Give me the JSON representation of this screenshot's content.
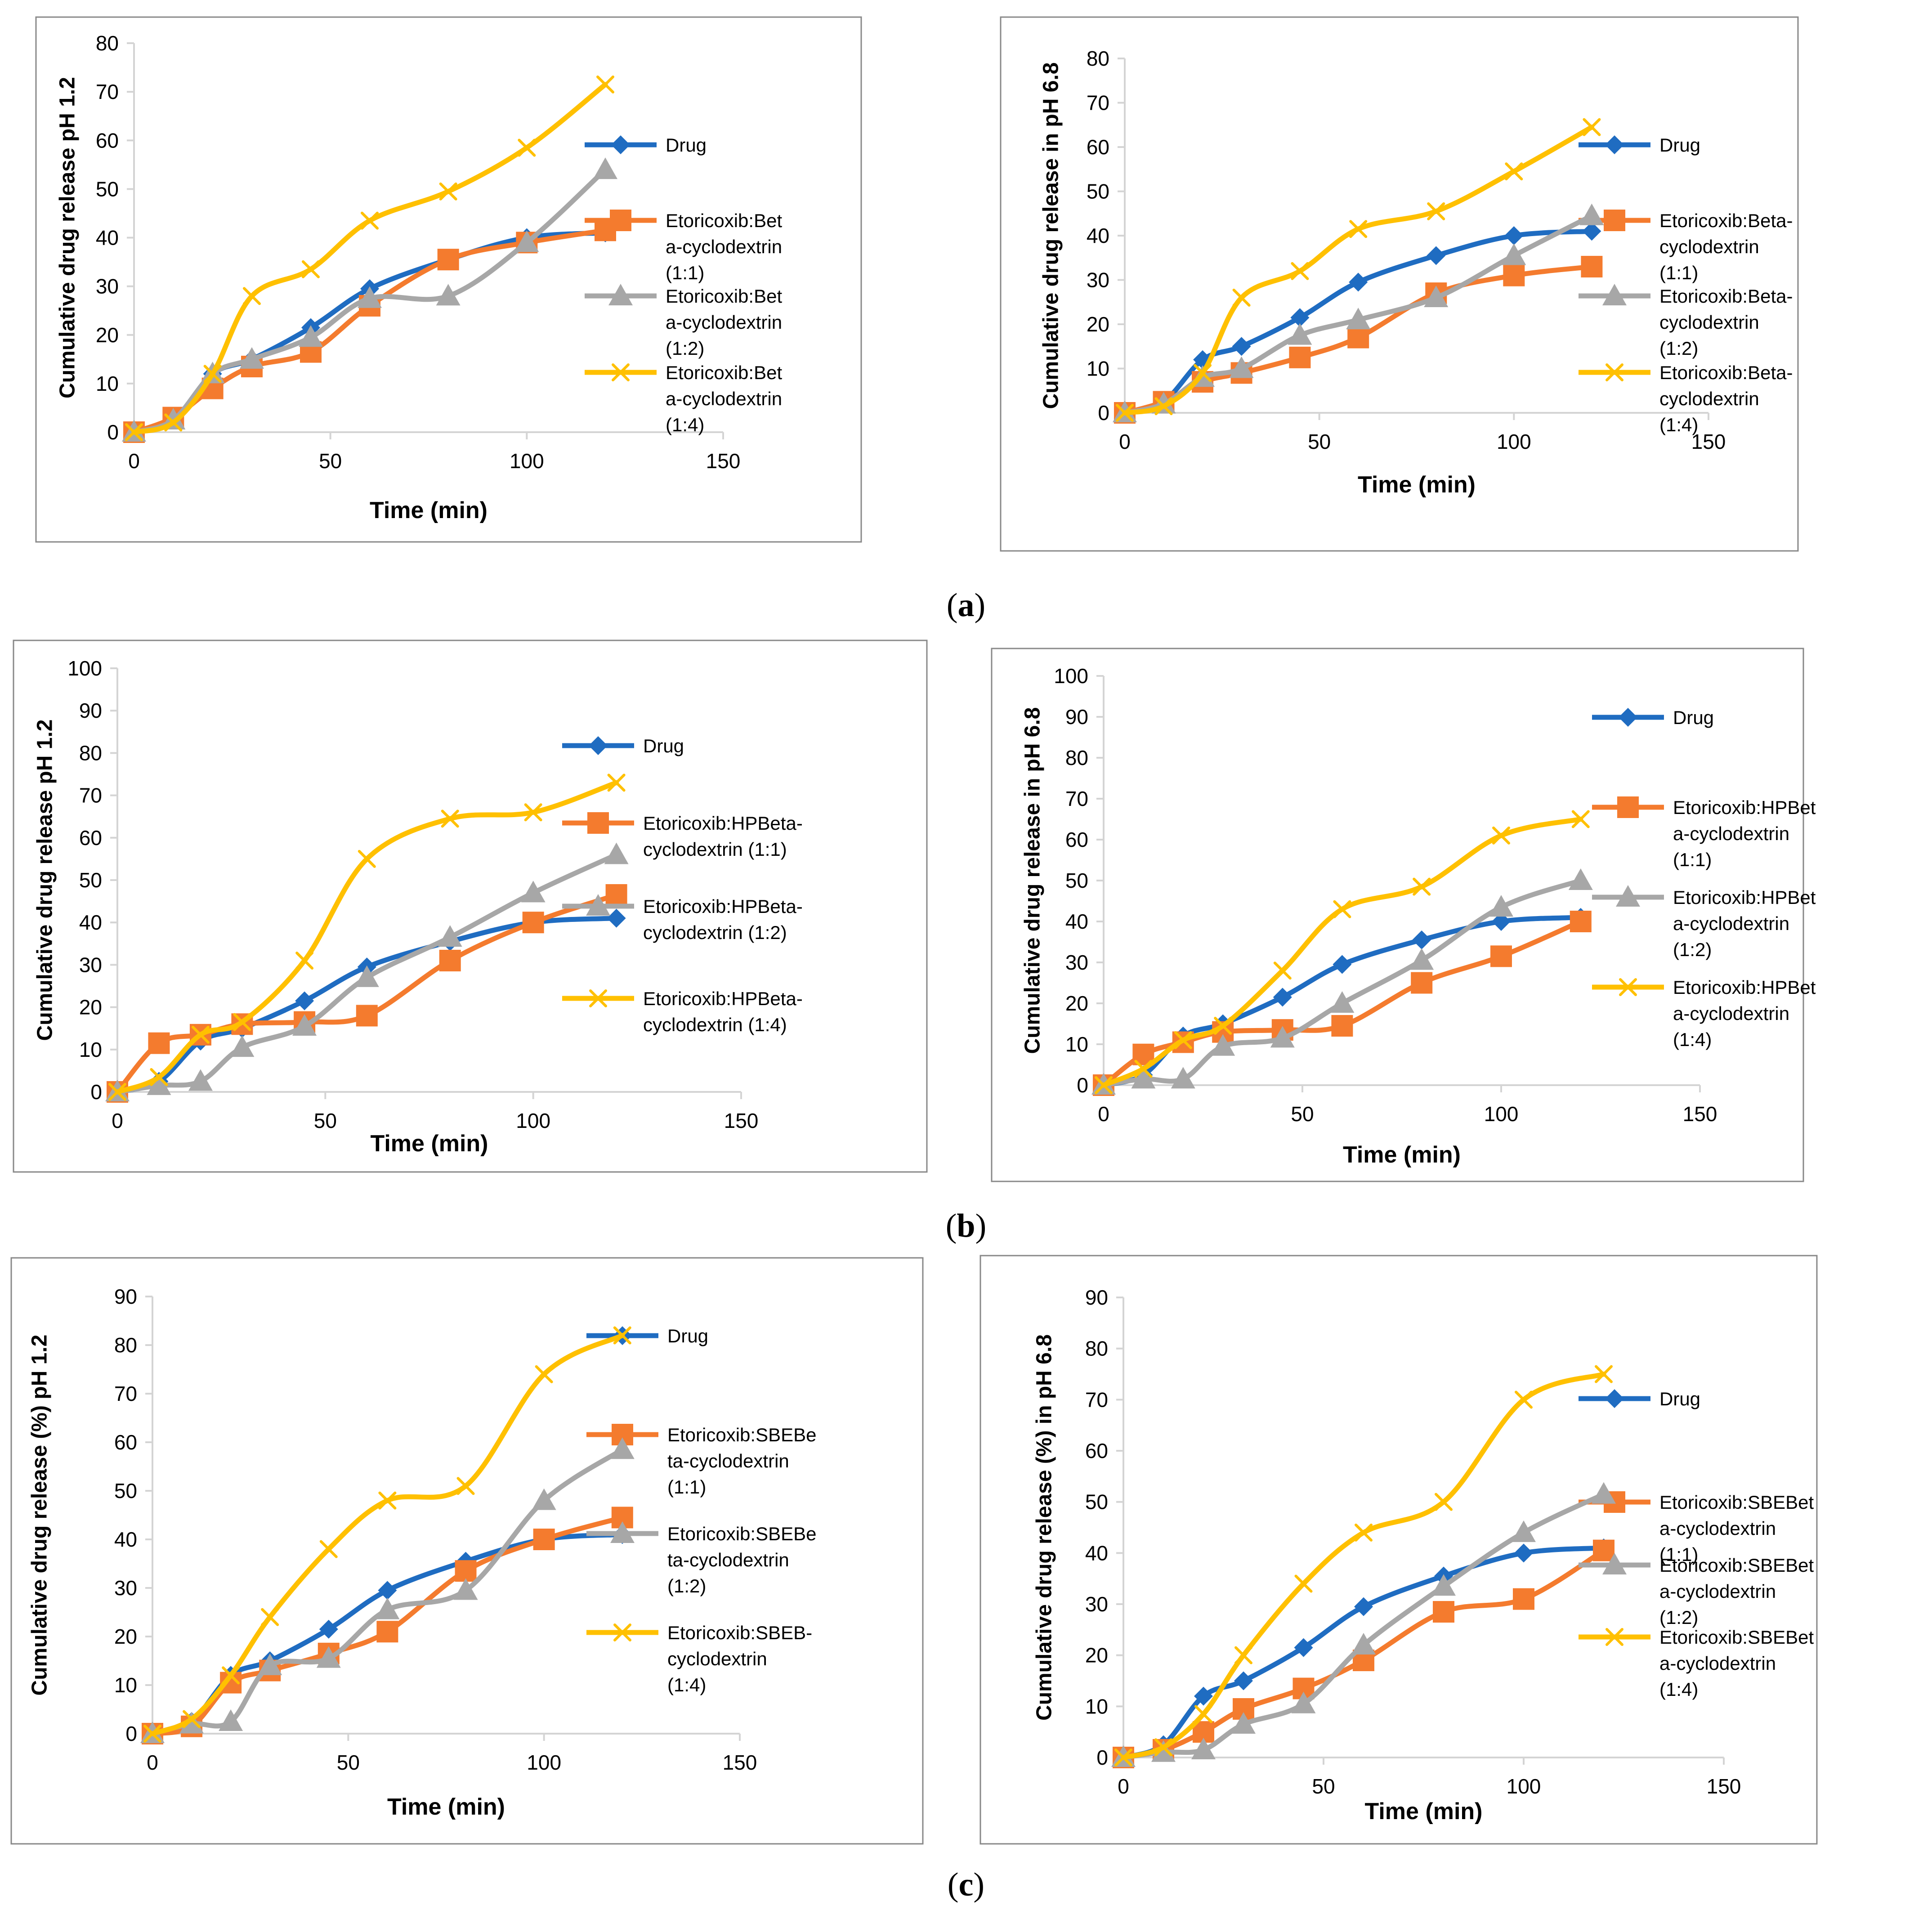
{
  "figure": {
    "panel_labels": [
      {
        "open": "(",
        "letter": "a",
        "close": ")"
      },
      {
        "open": "(",
        "letter": "b",
        "close": ")"
      },
      {
        "open": "(",
        "letter": "c",
        "close": ")"
      }
    ]
  },
  "colors": {
    "drug": "#1F6CC1",
    "r11": "#F47B2E",
    "r12": "#A7A7A7",
    "r14": "#FFC000",
    "axis": "#D4D4D4",
    "border": "#888888",
    "text": "#000000"
  },
  "chart_data": [
    {
      "id": "a-left",
      "type": "line",
      "title": "",
      "xlabel": "Time (min)",
      "ylabel": "Cumulative drug release pH 1.2",
      "xlim": [
        0,
        150
      ],
      "xticks": [
        0,
        50,
        100,
        150
      ],
      "ylim": [
        0,
        80
      ],
      "yticks": [
        0,
        10,
        20,
        30,
        40,
        50,
        60,
        70,
        80
      ],
      "x": [
        0,
        10,
        20,
        30,
        45,
        60,
        80,
        100,
        120
      ],
      "series": [
        {
          "key": "drug",
          "name": "Drug",
          "marker": "diamond",
          "values": [
            0,
            2.5,
            12,
            15,
            21.5,
            29.5,
            35.5,
            40,
            41
          ]
        },
        {
          "key": "r11",
          "name": [
            "Etoricoxib:Bet",
            "a-cyclodextrin",
            "(1:1)"
          ],
          "marker": "square",
          "values": [
            0,
            3,
            9,
            13.5,
            16.5,
            26,
            35.5,
            39,
            41.5
          ]
        },
        {
          "key": "r12",
          "name": [
            "Etoricoxib:Bet",
            "a-cyclodextrin",
            "(1:2)"
          ],
          "marker": "triangle",
          "values": [
            0,
            2.5,
            12,
            15,
            19.5,
            27.5,
            28,
            39,
            54
          ]
        },
        {
          "key": "r14",
          "name": [
            "Etoricoxib:Bet",
            "a-cyclodextrin",
            "(1:4)"
          ],
          "marker": "x",
          "values": [
            0,
            2,
            12,
            28,
            33.5,
            43.5,
            49.5,
            58.5,
            71.5
          ]
        }
      ]
    },
    {
      "id": "a-right",
      "type": "line",
      "title": "",
      "xlabel": "Time (min)",
      "ylabel": "Cumulative drug release in pH 6.8",
      "xlim": [
        0,
        150
      ],
      "xticks": [
        0,
        50,
        100,
        150
      ],
      "ylim": [
        0,
        80
      ],
      "yticks": [
        0,
        10,
        20,
        30,
        40,
        50,
        60,
        70,
        80
      ],
      "x": [
        0,
        10,
        20,
        30,
        45,
        60,
        80,
        100,
        120
      ],
      "series": [
        {
          "key": "drug",
          "name": "Drug",
          "marker": "diamond",
          "values": [
            0,
            2.5,
            12,
            15,
            21.5,
            29.5,
            35.5,
            40,
            41
          ]
        },
        {
          "key": "r11",
          "name": [
            "Etoricoxib:Beta-",
            "cyclodextrin",
            "(1:1)"
          ],
          "marker": "square",
          "values": [
            0,
            2.5,
            7,
            9,
            12.5,
            17,
            27,
            31,
            33
          ]
        },
        {
          "key": "r12",
          "name": [
            "Etoricoxib:Beta-",
            "cyclodextrin",
            "(1:2)"
          ],
          "marker": "triangle",
          "values": [
            0,
            2,
            8,
            10,
            17.5,
            21,
            26,
            35.5,
            44.5
          ]
        },
        {
          "key": "r14",
          "name": [
            "Etoricoxib:Beta-",
            "cyclodextrin",
            "(1:4)"
          ],
          "marker": "x",
          "values": [
            0,
            1.5,
            9,
            26,
            32,
            41.5,
            45.5,
            54.5,
            64.5
          ]
        }
      ]
    },
    {
      "id": "b-left",
      "type": "line",
      "title": "",
      "xlabel": "Time (min)",
      "ylabel": "Cumulative drug release pH 1.2",
      "xlim": [
        0,
        150
      ],
      "xticks": [
        0,
        50,
        100,
        150
      ],
      "ylim": [
        0,
        100
      ],
      "yticks": [
        0,
        10,
        20,
        30,
        40,
        50,
        60,
        70,
        80,
        90,
        100
      ],
      "x": [
        0,
        10,
        20,
        30,
        45,
        60,
        80,
        100,
        120
      ],
      "series": [
        {
          "key": "drug",
          "name": "Drug",
          "marker": "diamond",
          "values": [
            0,
            2.5,
            12,
            15,
            21.5,
            29.5,
            35.5,
            40,
            41
          ]
        },
        {
          "key": "r11",
          "name": [
            "Etoricoxib:HPBeta-",
            "cyclodextrin (1:1)"
          ],
          "marker": "square",
          "values": [
            0,
            11.5,
            13.5,
            16,
            16.5,
            18,
            31,
            40,
            46.5
          ]
        },
        {
          "key": "r12",
          "name": [
            "Etoricoxib:HPBeta-",
            "cyclodextrin (1:2)"
          ],
          "marker": "triangle",
          "values": [
            0,
            1.5,
            2.5,
            10.5,
            15.5,
            27,
            36.5,
            47,
            56
          ]
        },
        {
          "key": "r14",
          "name": [
            "Etoricoxib:HPBeta-",
            "cyclodextrin (1:4)"
          ],
          "marker": "x",
          "values": [
            0,
            3.5,
            13.5,
            16.5,
            31,
            55,
            64.5,
            66,
            73
          ]
        }
      ]
    },
    {
      "id": "b-right",
      "type": "line",
      "title": "",
      "xlabel": "Time (min)",
      "ylabel": "Cumulative drug release in pH 6.8",
      "xlim": [
        0,
        150
      ],
      "xticks": [
        0,
        50,
        100,
        150
      ],
      "ylim": [
        0,
        100
      ],
      "yticks": [
        0,
        10,
        20,
        30,
        40,
        50,
        60,
        70,
        80,
        90,
        100
      ],
      "x": [
        0,
        10,
        20,
        30,
        45,
        60,
        80,
        100,
        120
      ],
      "series": [
        {
          "key": "drug",
          "name": "Drug",
          "marker": "diamond",
          "values": [
            0,
            2.5,
            12,
            15,
            21.5,
            29.5,
            35.5,
            40,
            41
          ]
        },
        {
          "key": "r11",
          "name": [
            "Etoricoxib:HPBet",
            "a-cyclodextrin",
            "(1:1)"
          ],
          "marker": "square",
          "values": [
            0,
            7.5,
            10.5,
            13,
            13.5,
            14.5,
            25,
            31.5,
            40
          ]
        },
        {
          "key": "r12",
          "name": [
            "Etoricoxib:HPBet",
            "a-cyclodextrin",
            "(1:2)"
          ],
          "marker": "triangle",
          "values": [
            0,
            1.5,
            1.5,
            9.5,
            11.5,
            20,
            30.5,
            43.5,
            50
          ]
        },
        {
          "key": "r14",
          "name": [
            "Etoricoxib:HPBet",
            "a-cyclodextrin",
            "(1:4)"
          ],
          "marker": "x",
          "values": [
            0,
            4,
            11,
            14.5,
            28,
            43,
            48.5,
            61,
            65
          ]
        }
      ]
    },
    {
      "id": "c-left",
      "type": "line",
      "title": "",
      "xlabel": "Time (min)",
      "ylabel": "Cumulative drug release (%) pH 1.2",
      "xlim": [
        0,
        150
      ],
      "xticks": [
        0,
        50,
        100,
        150
      ],
      "ylim": [
        0,
        90
      ],
      "yticks": [
        0,
        10,
        20,
        30,
        40,
        50,
        60,
        70,
        80,
        90
      ],
      "x": [
        0,
        10,
        20,
        30,
        45,
        60,
        80,
        100,
        120
      ],
      "series": [
        {
          "key": "drug",
          "name": "Drug",
          "marker": "diamond",
          "values": [
            0,
            2.5,
            12,
            15,
            21.5,
            29.5,
            35.5,
            40,
            41
          ]
        },
        {
          "key": "r11",
          "name": [
            "Etoricoxib:SBEBe",
            "ta-cyclodextrin",
            "(1:1)"
          ],
          "marker": "square",
          "values": [
            0,
            1.5,
            10.5,
            13,
            16.5,
            21,
            33.5,
            40,
            44.5
          ]
        },
        {
          "key": "r12",
          "name": [
            "Etoricoxib:SBEBe",
            "ta-cyclodextrin",
            "(1:2)"
          ],
          "marker": "triangle",
          "values": [
            0,
            2,
            2.5,
            14,
            15.5,
            25.5,
            29.5,
            48,
            58.5
          ]
        },
        {
          "key": "r14",
          "name": [
            "Etoricoxib:SBEB-",
            "cyclodextrin",
            "(1:4)"
          ],
          "marker": "x",
          "values": [
            0,
            3,
            12,
            24,
            38,
            48,
            51,
            74,
            82
          ]
        }
      ]
    },
    {
      "id": "c-right",
      "type": "line",
      "title": "",
      "xlabel": "Time (min)",
      "ylabel": "Cumulative drug release (%) in pH 6.8",
      "xlim": [
        0,
        150
      ],
      "xticks": [
        0,
        50,
        100,
        150
      ],
      "ylim": [
        0,
        90
      ],
      "yticks": [
        0,
        10,
        20,
        30,
        40,
        50,
        60,
        70,
        80,
        90
      ],
      "x": [
        0,
        10,
        20,
        30,
        45,
        60,
        80,
        100,
        120
      ],
      "series": [
        {
          "key": "drug",
          "name": "Drug",
          "marker": "diamond",
          "values": [
            0,
            2.5,
            12,
            15,
            21.5,
            29.5,
            35.5,
            40,
            41
          ]
        },
        {
          "key": "r11",
          "name": [
            "Etoricoxib:SBEBet",
            "a-cyclodextrin",
            "(1:1)"
          ],
          "marker": "square",
          "values": [
            0,
            1.5,
            5,
            9.5,
            13.5,
            19,
            28.5,
            31,
            40.5
          ]
        },
        {
          "key": "r12",
          "name": [
            "Etoricoxib:SBEBet",
            "a-cyclodextrin",
            "(1:2)"
          ],
          "marker": "triangle",
          "values": [
            0,
            1,
            1.5,
            6.5,
            10.5,
            22,
            33.5,
            44,
            51.5
          ]
        },
        {
          "key": "r14",
          "name": [
            "Etoricoxib:SBEBet",
            "a-cyclodextrin",
            "(1:4)"
          ],
          "marker": "x",
          "values": [
            0,
            2,
            8.5,
            20,
            34,
            44,
            50,
            70,
            75
          ]
        }
      ]
    }
  ]
}
